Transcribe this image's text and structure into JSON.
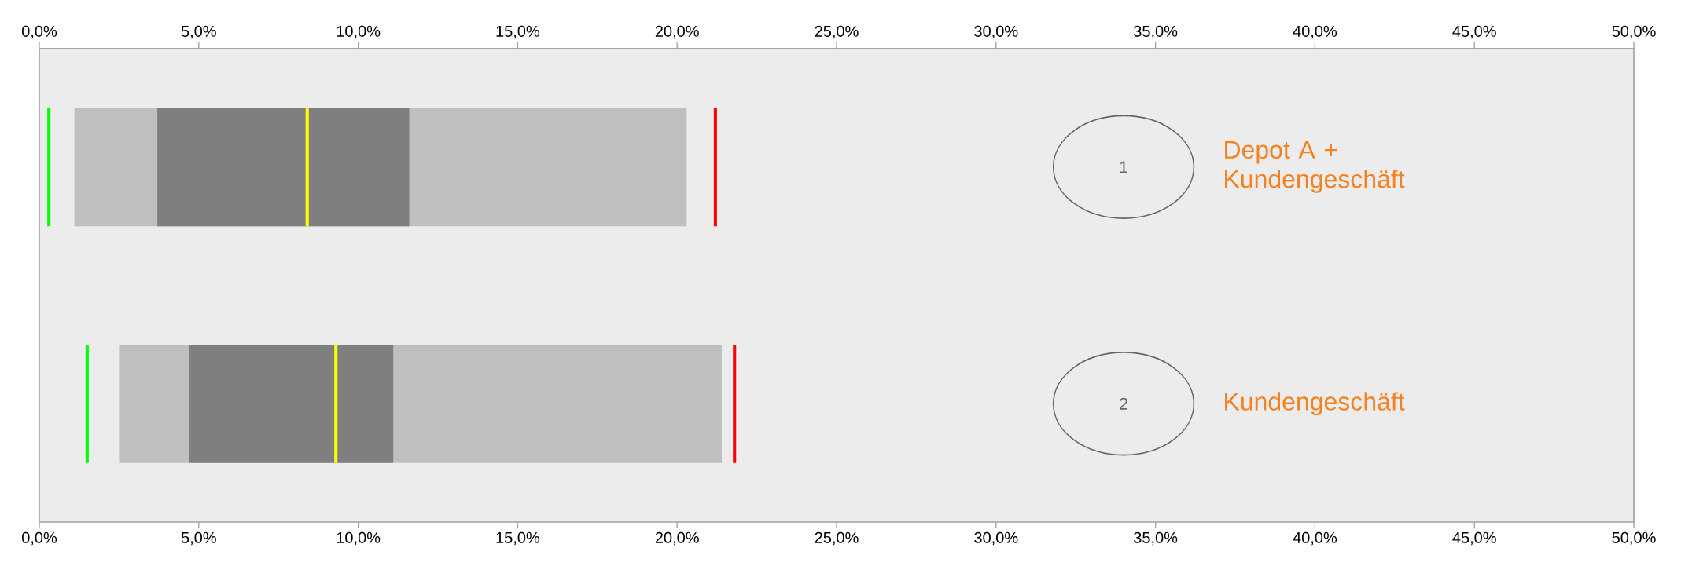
{
  "chart_data": {
    "type": "bar",
    "orientation": "horizontal",
    "categories": [
      "Depot A + Kundengeschäft",
      "Kundengeschäft"
    ],
    "series": [
      {
        "color": "#bfbfbf",
        "base": [
          1.1,
          2.5
        ],
        "values": [
          19.2,
          18.9
        ]
      },
      {
        "color": "#7f7f7f",
        "base": [
          3.7,
          4.7
        ],
        "values": [
          7.9,
          6.4
        ]
      },
      {
        "color": "#00ff00",
        "base": [
          0.25,
          1.45
        ],
        "values": [
          0.1,
          0.1
        ]
      },
      {
        "color": "#ffff00",
        "base": [
          8.35,
          9.25
        ],
        "values": [
          0.1,
          0.1
        ]
      },
      {
        "color": "#ff0000",
        "base": [
          21.15,
          21.75
        ],
        "values": [
          0.1,
          0.1
        ]
      }
    ],
    "annotations": [
      "1",
      "2"
    ],
    "xlim": [
      0,
      50
    ],
    "xticks": [
      {
        "value": 0,
        "label": "0,0%"
      },
      {
        "value": 5,
        "label": "5,0%"
      },
      {
        "value": 10,
        "label": "10,0%"
      },
      {
        "value": 15,
        "label": "15,0%"
      },
      {
        "value": 20,
        "label": "20,0%"
      },
      {
        "value": 25,
        "label": "25,0%"
      },
      {
        "value": 30,
        "label": "30,0%"
      },
      {
        "value": 35,
        "label": "35,0%"
      },
      {
        "value": 40,
        "label": "40,0%"
      },
      {
        "value": 45,
        "label": "45,0%"
      },
      {
        "value": 50,
        "label": "50,0%"
      }
    ],
    "x2lim": [
      0,
      50
    ],
    "x2ticks": [
      {
        "value": 0,
        "label": "0,0%"
      },
      {
        "value": 5,
        "label": "5,0%"
      },
      {
        "value": 10,
        "label": "10,0%"
      },
      {
        "value": 15,
        "label": "15,0%"
      },
      {
        "value": 20,
        "label": "20,0%"
      },
      {
        "value": 25,
        "label": "25,0%"
      },
      {
        "value": 30,
        "label": "30,0%"
      },
      {
        "value": 35,
        "label": "35,0%"
      },
      {
        "value": 40,
        "label": "40,0%"
      },
      {
        "value": 45,
        "label": "45,0%"
      },
      {
        "value": 50,
        "label": "50,0%"
      }
    ]
  }
}
